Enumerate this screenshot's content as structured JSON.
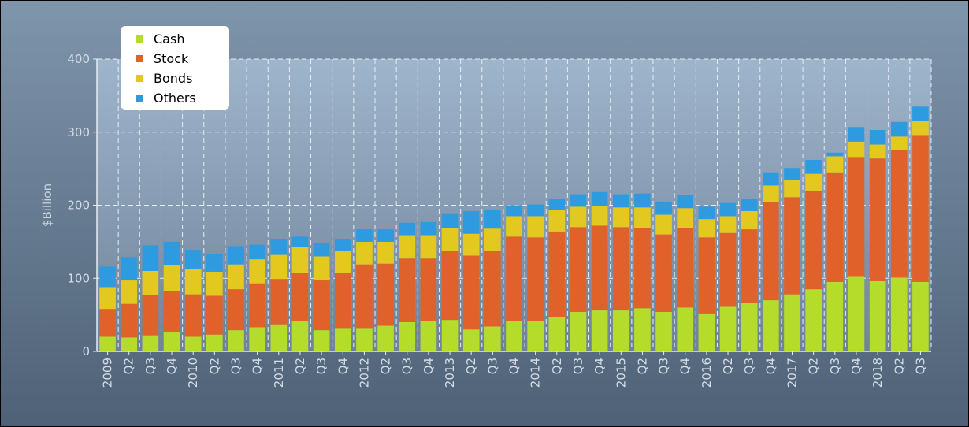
{
  "chart_data": {
    "type": "bar",
    "stacked": true,
    "ylabel": "$Billion",
    "ylim": [
      0,
      400
    ],
    "yticks": [
      0,
      100,
      200,
      300,
      400
    ],
    "grid": true,
    "legend_position": "top-left",
    "categories": [
      "2009",
      "Q2",
      "Q3",
      "Q4",
      "2010",
      "Q2",
      "Q3",
      "Q4",
      "2011",
      "Q2",
      "Q3",
      "Q4",
      "2012",
      "Q2",
      "Q3",
      "Q4",
      "2013",
      "Q2",
      "Q3",
      "Q4",
      "2014",
      "Q2",
      "Q3",
      "Q4",
      "2015",
      "Q2",
      "Q3",
      "Q4",
      "2016",
      "Q2",
      "Q3",
      "Q4",
      "2017",
      "Q2",
      "Q3",
      "Q4",
      "2018",
      "Q2",
      "Q3"
    ],
    "series": [
      {
        "name": "Cash",
        "color": "#b5dc2a",
        "values": [
          20,
          19,
          22,
          27,
          20,
          23,
          29,
          33,
          37,
          41,
          29,
          32,
          32,
          35,
          40,
          41,
          43,
          30,
          34,
          41,
          41,
          47,
          54,
          56,
          56,
          59,
          54,
          60,
          52,
          61,
          66,
          70,
          78,
          85,
          95,
          103,
          96,
          101,
          95
        ]
      },
      {
        "name": "Stock",
        "color": "#e0622a",
        "values": [
          38,
          46,
          55,
          56,
          58,
          53,
          56,
          60,
          62,
          66,
          68,
          75,
          87,
          85,
          87,
          86,
          95,
          101,
          104,
          116,
          115,
          117,
          116,
          116,
          114,
          110,
          106,
          109,
          104,
          101,
          101,
          134,
          133,
          135,
          150,
          163,
          168,
          174,
          201
        ]
      },
      {
        "name": "Bonds",
        "color": "#e3c91f",
        "values": [
          30,
          32,
          33,
          35,
          35,
          33,
          34,
          33,
          33,
          36,
          33,
          31,
          31,
          30,
          32,
          32,
          31,
          30,
          30,
          28,
          29,
          30,
          28,
          27,
          27,
          28,
          27,
          27,
          25,
          23,
          25,
          23,
          23,
          23,
          22,
          21,
          19,
          19,
          19
        ]
      },
      {
        "name": "Others",
        "color": "#2e9be0",
        "values": [
          28,
          32,
          35,
          32,
          26,
          24,
          25,
          20,
          22,
          14,
          18,
          16,
          17,
          17,
          17,
          18,
          20,
          31,
          26,
          15,
          16,
          15,
          17,
          19,
          18,
          19,
          18,
          18,
          17,
          18,
          17,
          18,
          17,
          19,
          5,
          20,
          20,
          20,
          20
        ]
      }
    ]
  }
}
